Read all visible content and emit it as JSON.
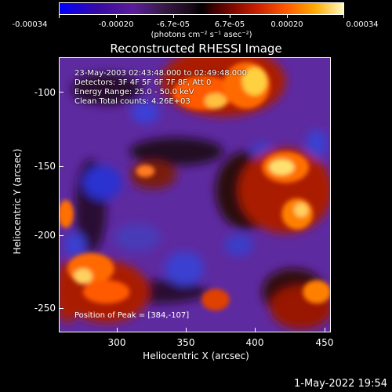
{
  "colorbar": {
    "ticks": [
      "-0.00034",
      "-0.00020",
      "-6.7e-05",
      "6.7e-05",
      "0.00020",
      "0.00034"
    ],
    "units": "(photons cm⁻² s⁻¹ asec⁻²)"
  },
  "title": "Reconstructed RHESSI Image",
  "annotation": {
    "line1": "23-May-2003 02:43:48.000 to 02:49:48.000",
    "line2": "Detectors: 3F 4F 5F 6F 7F 8F, Att 0",
    "line3": "Energy Range: 25.0 - 50.0 keV",
    "line4": "Clean     Total counts: 4.26E+03",
    "peak": "Position of Peak = [384,-107]"
  },
  "axes": {
    "xlabel": "Heliocentric X (arcsec)",
    "ylabel": "Heliocentric Y (arcsec)",
    "xticks": [
      "300",
      "350",
      "400",
      "450"
    ],
    "yticks": [
      "-100",
      "-150",
      "-200",
      "-250"
    ]
  },
  "footer": "1-May-2022 19:54"
}
